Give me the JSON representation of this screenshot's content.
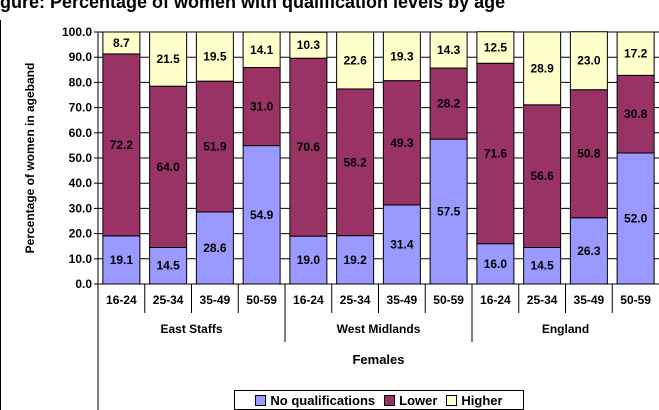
{
  "chart_data": {
    "type": "bar",
    "stacked": true,
    "title": "gure: Percentage of women with qualification levels by age",
    "ylabel": "Percentage of women in ageband",
    "xlabel": "Females",
    "ylim": [
      0,
      100
    ],
    "yticks": [
      "0.0",
      "10.0",
      "20.0",
      "30.0",
      "40.0",
      "50.0",
      "60.0",
      "70.0",
      "80.0",
      "90.0",
      "100.0"
    ],
    "groups": [
      {
        "name": "East Staffs",
        "categories": [
          "16-24",
          "25-34",
          "35-49",
          "50-59"
        ]
      },
      {
        "name": "West Midlands",
        "categories": [
          "16-24",
          "25-34",
          "35-49",
          "50-59"
        ]
      },
      {
        "name": "England",
        "categories": [
          "16-24",
          "25-34",
          "35-49",
          "50-59"
        ]
      }
    ],
    "series": [
      {
        "name": "No qualifications",
        "color": "#9999FF",
        "values": [
          19.1,
          14.5,
          28.6,
          54.9,
          19.0,
          19.2,
          31.4,
          57.5,
          16.0,
          14.5,
          26.3,
          52.0
        ],
        "labels": [
          "19.1",
          "14.5",
          "28.6",
          "54.9",
          "19.0",
          "19.2",
          "31.4",
          "57.5",
          "16.0",
          "14.5",
          "26.3",
          "52.0"
        ]
      },
      {
        "name": "Lower",
        "color": "#993366",
        "values": [
          72.2,
          64.0,
          51.9,
          31.0,
          70.6,
          58.2,
          49.3,
          28.2,
          71.6,
          56.6,
          50.8,
          30.8
        ],
        "labels": [
          "72.2",
          "64.0",
          "51.9",
          "31.0",
          "70.6",
          "58.2",
          "49.3",
          "28.2",
          "71.6",
          "56.6",
          "50.8",
          "30.8"
        ]
      },
      {
        "name": "Higher",
        "color": "#FFFFCC",
        "values": [
          8.7,
          21.5,
          19.5,
          14.1,
          10.3,
          22.6,
          19.3,
          14.3,
          12.5,
          28.9,
          23.0,
          17.2
        ],
        "labels": [
          "8.7",
          "21.5",
          "19.5",
          "14.1",
          "10.3",
          "22.6",
          "19.3",
          "14.3",
          "12.5",
          "28.9",
          "23.0",
          "17.2"
        ]
      }
    ],
    "legend": "bottom",
    "grid": true
  }
}
